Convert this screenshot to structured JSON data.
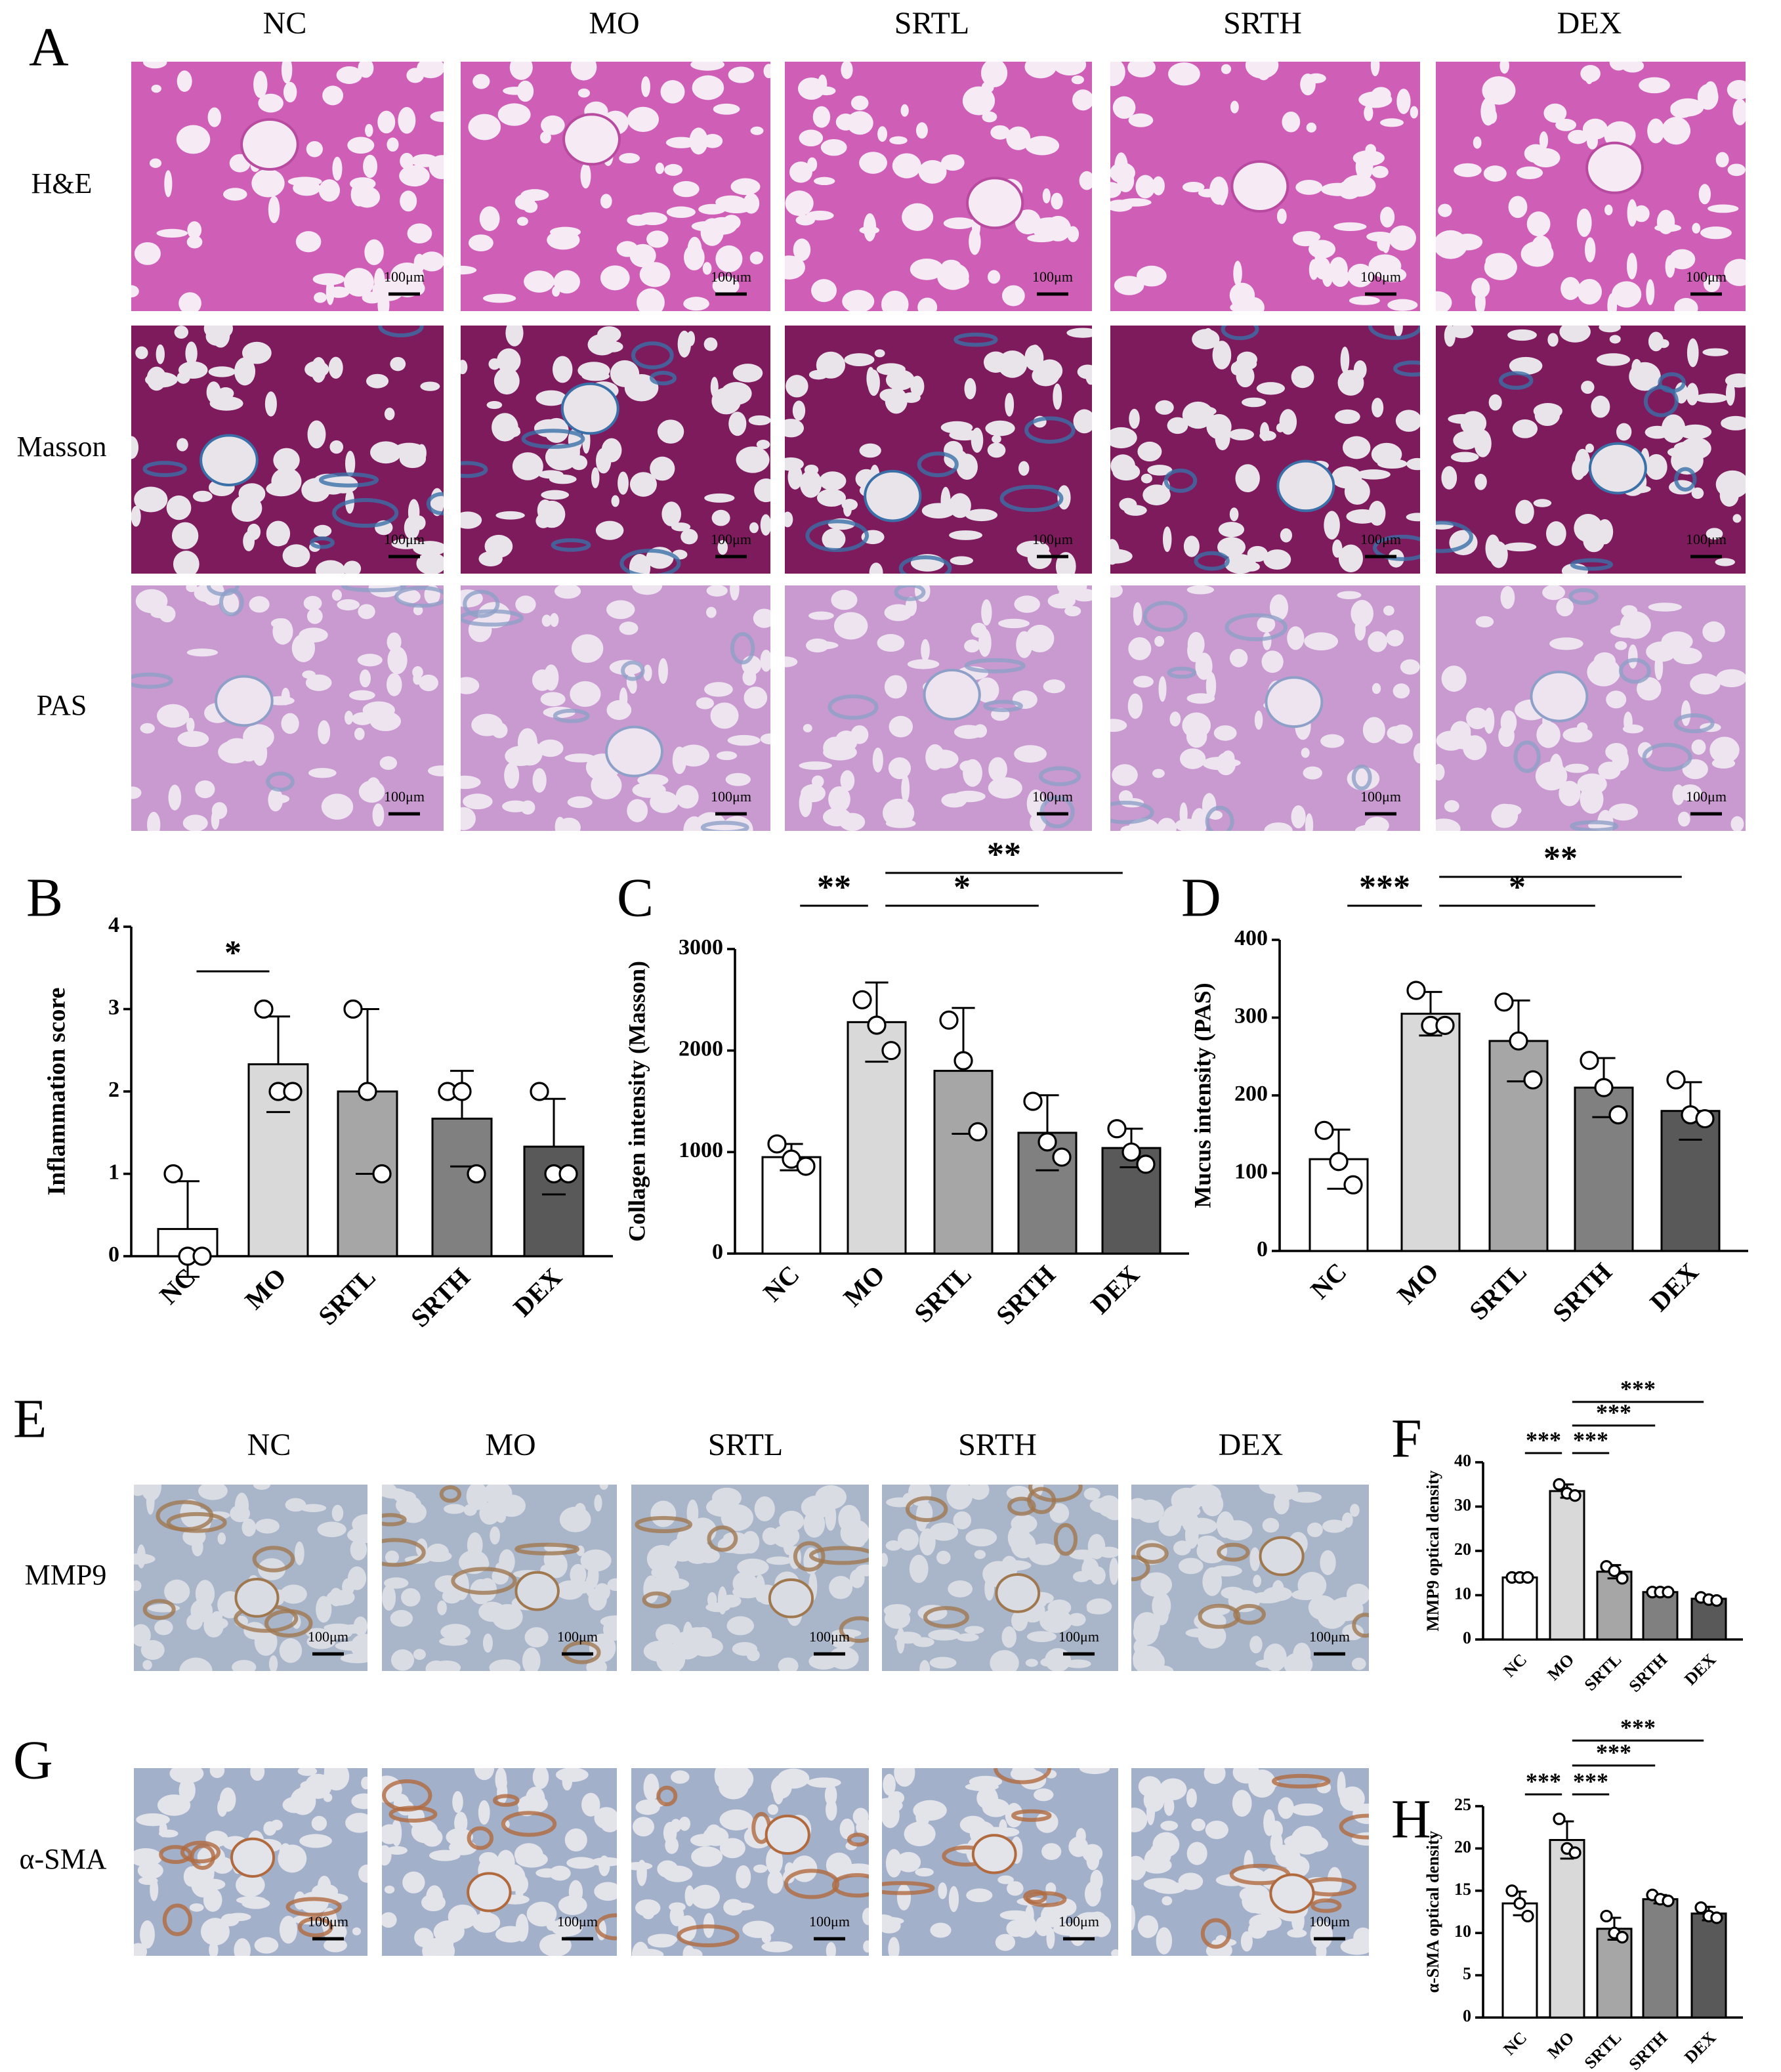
{
  "micrographs": [
    {
      "panel": "A",
      "columns": [
        "NC",
        "MO",
        "SRTL",
        "SRTH",
        "DEX"
      ],
      "rows": [
        {
          "label": "H&E",
          "scale_bars": [
            "100μm",
            "100μm",
            "100μm",
            "100μm",
            "100μm"
          ]
        },
        {
          "label": "Masson",
          "scale_bars": [
            "100μm",
            "100μm",
            "100μm",
            "100μm",
            "100μm"
          ]
        },
        {
          "label": "PAS",
          "scale_bars": [
            "100μm",
            "100μm",
            "100μm",
            "100μm",
            "100μm"
          ]
        }
      ]
    },
    {
      "panel": "E",
      "columns": [
        "NC",
        "MO",
        "SRTL",
        "SRTH",
        "DEX"
      ],
      "rows": [
        {
          "label": "MMP9",
          "scale_bars": [
            "100μm",
            "100μm",
            "100μm",
            "100μm",
            "100μm"
          ]
        }
      ]
    },
    {
      "panel": "G",
      "rows": [
        {
          "label": "α-SMA",
          "scale_bars": [
            "100μm",
            "100μm",
            "100μm",
            "100μm",
            "100μm"
          ]
        }
      ]
    }
  ],
  "chart_data": [
    {
      "type": "bar",
      "panel": "B",
      "ylabel": "Inflammation  score",
      "categories": [
        "NC",
        "MO",
        "SRTL",
        "SRTH",
        "DEX"
      ],
      "values": [
        0.33,
        2.33,
        2.0,
        1.67,
        1.33
      ],
      "errors": [
        0.58,
        0.58,
        1.0,
        0.58,
        0.58
      ],
      "points": [
        [
          1,
          0,
          0
        ],
        [
          3,
          2,
          2
        ],
        [
          3,
          2,
          1
        ],
        [
          2,
          2,
          1
        ],
        [
          2,
          1,
          1
        ]
      ],
      "colors": [
        "#ffffff",
        "#d9d9d9",
        "#a6a6a6",
        "#808080",
        "#595959"
      ],
      "ylim": [
        0,
        4
      ],
      "yticks": [
        0,
        1,
        2,
        3,
        4
      ],
      "significance": [
        {
          "pair": [
            "NC",
            "MO"
          ],
          "label": "*"
        }
      ]
    },
    {
      "type": "bar",
      "panel": "C",
      "ylabel": "Collagen intensity (Masson)",
      "categories": [
        "NC",
        "MO",
        "SRTL",
        "SRTH",
        "DEX"
      ],
      "values": [
        950,
        2280,
        1800,
        1190,
        1040
      ],
      "errors": [
        130,
        390,
        620,
        370,
        190
      ],
      "points": [
        [
          1080,
          930,
          860
        ],
        [
          2500,
          2250,
          2000
        ],
        [
          2300,
          1900,
          1200
        ],
        [
          1500,
          1100,
          950
        ],
        [
          1230,
          1000,
          880
        ]
      ],
      "colors": [
        "#ffffff",
        "#d9d9d9",
        "#a6a6a6",
        "#808080",
        "#595959"
      ],
      "ylim": [
        0,
        3000
      ],
      "yticks": [
        0,
        1000,
        2000,
        3000
      ],
      "significance": [
        {
          "pair": [
            "NC",
            "MO"
          ],
          "label": "**"
        },
        {
          "pair": [
            "MO",
            "SRTH"
          ],
          "label": "*"
        },
        {
          "pair": [
            "MO",
            "DEX"
          ],
          "label": "**"
        }
      ]
    },
    {
      "type": "bar",
      "panel": "D",
      "ylabel": "Mucus intensity (PAS)",
      "categories": [
        "NC",
        "MO",
        "SRTL",
        "SRTH",
        "DEX"
      ],
      "values": [
        118,
        305,
        270,
        210,
        180
      ],
      "errors": [
        38,
        28,
        52,
        38,
        37
      ],
      "points": [
        [
          155,
          115,
          85
        ],
        [
          335,
          290,
          290
        ],
        [
          320,
          270,
          220
        ],
        [
          245,
          210,
          175
        ],
        [
          220,
          175,
          170
        ]
      ],
      "colors": [
        "#ffffff",
        "#d9d9d9",
        "#a6a6a6",
        "#808080",
        "#595959"
      ],
      "ylim": [
        0,
        400
      ],
      "yticks": [
        0,
        100,
        200,
        300,
        400
      ],
      "significance": [
        {
          "pair": [
            "NC",
            "MO"
          ],
          "label": "***"
        },
        {
          "pair": [
            "MO",
            "SRTH"
          ],
          "label": "*"
        },
        {
          "pair": [
            "MO",
            "DEX"
          ],
          "label": "**"
        }
      ]
    },
    {
      "type": "bar",
      "panel": "F",
      "ylabel": "MMP9 optical density",
      "categories": [
        "NC",
        "MO",
        "SRTL",
        "SRTH",
        "DEX"
      ],
      "values": [
        14,
        33.5,
        15.3,
        10.7,
        9.2
      ],
      "errors": [
        0.2,
        1.5,
        1.5,
        0.2,
        0.5
      ],
      "points": [
        [
          14,
          14,
          14
        ],
        [
          35,
          33,
          32.5
        ],
        [
          16.5,
          15.5,
          13.8
        ],
        [
          10.7,
          10.7,
          10.7
        ],
        [
          9.5,
          9,
          8.8
        ]
      ],
      "colors": [
        "#ffffff",
        "#d9d9d9",
        "#a6a6a6",
        "#808080",
        "#595959"
      ],
      "ylim": [
        0,
        40
      ],
      "yticks": [
        0,
        10,
        20,
        30,
        40
      ],
      "significance": [
        {
          "pair": [
            "NC",
            "MO"
          ],
          "label": "***"
        },
        {
          "pair": [
            "MO",
            "SRTL"
          ],
          "label": "***"
        },
        {
          "pair": [
            "MO",
            "SRTH"
          ],
          "label": "***"
        },
        {
          "pair": [
            "MO",
            "DEX"
          ],
          "label": "***"
        }
      ]
    },
    {
      "type": "bar",
      "panel": "H",
      "ylabel": "α-SMA optical density",
      "categories": [
        "NC",
        "MO",
        "SRTL",
        "SRTH",
        "DEX"
      ],
      "values": [
        13.5,
        21,
        10.5,
        14,
        12.3
      ],
      "errors": [
        1.4,
        2.2,
        1.3,
        0.5,
        0.8
      ],
      "points": [
        [
          15,
          13.5,
          12
        ],
        [
          23.5,
          20,
          19.5
        ],
        [
          12,
          10,
          9.5
        ],
        [
          14.5,
          14,
          13.8
        ],
        [
          13,
          12,
          11.8
        ]
      ],
      "colors": [
        "#ffffff",
        "#d9d9d9",
        "#a6a6a6",
        "#808080",
        "#595959"
      ],
      "ylim": [
        0,
        25
      ],
      "yticks": [
        0,
        5,
        10,
        15,
        20,
        25
      ],
      "significance": [
        {
          "pair": [
            "NC",
            "MO"
          ],
          "label": "***"
        },
        {
          "pair": [
            "MO",
            "SRTL"
          ],
          "label": "***"
        },
        {
          "pair": [
            "MO",
            "SRTH"
          ],
          "label": "***"
        },
        {
          "pair": [
            "MO",
            "DEX"
          ],
          "label": "***"
        }
      ]
    }
  ]
}
